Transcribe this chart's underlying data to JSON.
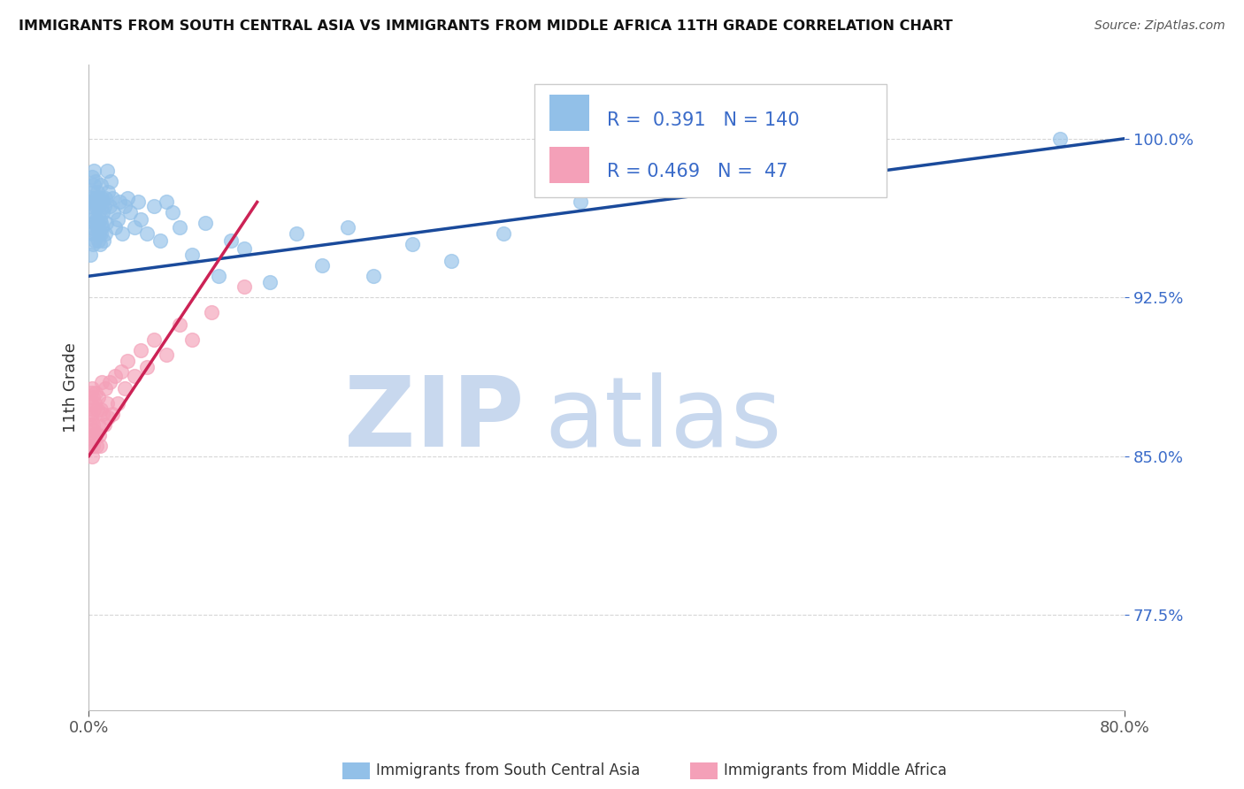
{
  "title": "IMMIGRANTS FROM SOUTH CENTRAL ASIA VS IMMIGRANTS FROM MIDDLE AFRICA 11TH GRADE CORRELATION CHART",
  "source": "Source: ZipAtlas.com",
  "ylabel_label": "11th Grade",
  "xlim": [
    0.0,
    80.0
  ],
  "ylim": [
    73.0,
    103.5
  ],
  "ytick_vals": [
    77.5,
    85.0,
    92.5,
    100.0
  ],
  "xtick_vals": [
    0.0,
    80.0
  ],
  "legend1_R": "0.391",
  "legend1_N": "140",
  "legend2_R": "0.469",
  "legend2_N": "47",
  "blue_color": "#92C0E8",
  "pink_color": "#F4A0B8",
  "trend_blue": "#1A4A9B",
  "trend_pink": "#CC2255",
  "watermark_color": "#C8D8EE",
  "watermark_text": "ZIPatlas",
  "legend_text1": "Immigrants from South Central Asia",
  "legend_text2": "Immigrants from Middle Africa",
  "blue_scatter_x": [
    0.1,
    0.15,
    0.18,
    0.2,
    0.22,
    0.25,
    0.28,
    0.3,
    0.32,
    0.35,
    0.38,
    0.4,
    0.42,
    0.45,
    0.48,
    0.5,
    0.52,
    0.55,
    0.58,
    0.6,
    0.62,
    0.65,
    0.68,
    0.7,
    0.72,
    0.75,
    0.78,
    0.8,
    0.82,
    0.85,
    0.88,
    0.9,
    0.92,
    0.95,
    0.98,
    1.0,
    1.05,
    1.1,
    1.15,
    1.2,
    1.25,
    1.3,
    1.35,
    1.4,
    1.5,
    1.6,
    1.7,
    1.8,
    1.9,
    2.0,
    2.2,
    2.4,
    2.6,
    2.8,
    3.0,
    3.2,
    3.5,
    3.8,
    4.0,
    4.5,
    5.0,
    5.5,
    6.0,
    6.5,
    7.0,
    8.0,
    9.0,
    10.0,
    11.0,
    12.0,
    14.0,
    16.0,
    18.0,
    20.0,
    22.0,
    25.0,
    28.0,
    32.0,
    38.0,
    75.0
  ],
  "blue_scatter_y": [
    94.5,
    95.8,
    97.2,
    96.8,
    95.5,
    98.2,
    97.0,
    96.2,
    95.0,
    97.5,
    96.5,
    98.5,
    97.8,
    96.0,
    95.2,
    97.2,
    96.8,
    98.0,
    95.5,
    97.0,
    96.2,
    95.8,
    97.5,
    96.0,
    95.2,
    96.8,
    95.5,
    97.2,
    96.5,
    95.0,
    96.2,
    97.8,
    95.5,
    96.0,
    97.2,
    95.8,
    96.5,
    97.0,
    95.2,
    96.8,
    95.5,
    97.2,
    96.0,
    98.5,
    97.5,
    96.8,
    98.0,
    97.2,
    96.5,
    95.8,
    96.2,
    97.0,
    95.5,
    96.8,
    97.2,
    96.5,
    95.8,
    97.0,
    96.2,
    95.5,
    96.8,
    95.2,
    97.0,
    96.5,
    95.8,
    94.5,
    96.0,
    93.5,
    95.2,
    94.8,
    93.2,
    95.5,
    94.0,
    95.8,
    93.5,
    95.0,
    94.2,
    95.5,
    97.0,
    100.0
  ],
  "pink_scatter_x": [
    0.08,
    0.1,
    0.12,
    0.15,
    0.18,
    0.2,
    0.22,
    0.25,
    0.28,
    0.3,
    0.32,
    0.35,
    0.38,
    0.4,
    0.42,
    0.45,
    0.5,
    0.55,
    0.6,
    0.65,
    0.7,
    0.75,
    0.8,
    0.85,
    0.9,
    1.0,
    1.1,
    1.2,
    1.3,
    1.4,
    1.5,
    1.6,
    1.8,
    2.0,
    2.2,
    2.5,
    2.8,
    3.0,
    3.5,
    4.0,
    4.5,
    5.0,
    6.0,
    7.0,
    8.0,
    9.5,
    12.0
  ],
  "pink_scatter_y": [
    86.5,
    87.0,
    85.5,
    88.0,
    86.8,
    87.5,
    85.0,
    88.2,
    86.0,
    87.8,
    85.5,
    86.5,
    87.2,
    85.8,
    86.2,
    87.5,
    86.0,
    88.0,
    85.5,
    87.2,
    86.5,
    87.8,
    86.0,
    85.5,
    87.2,
    88.5,
    87.0,
    86.5,
    88.2,
    87.5,
    86.8,
    88.5,
    87.0,
    88.8,
    87.5,
    89.0,
    88.2,
    89.5,
    88.8,
    90.0,
    89.2,
    90.5,
    89.8,
    91.2,
    90.5,
    91.8,
    93.0
  ]
}
